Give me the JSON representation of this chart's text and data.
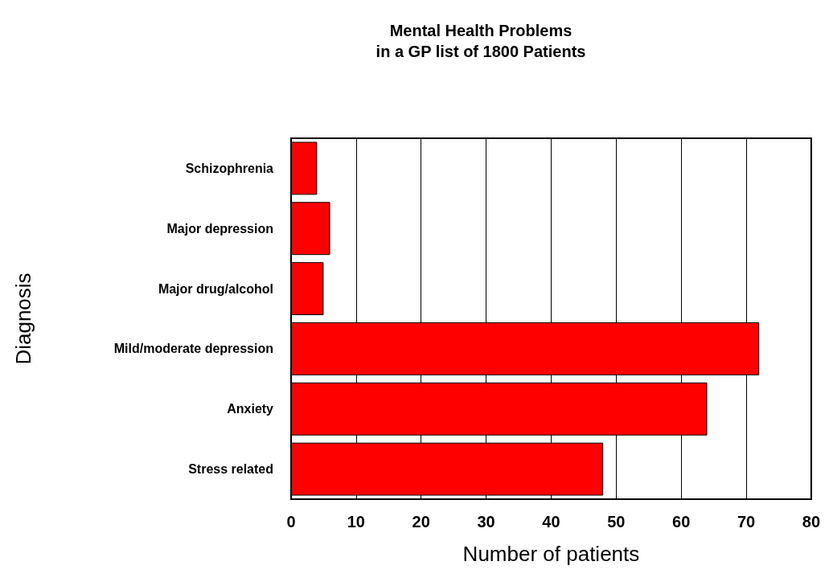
{
  "chart_data": {
    "type": "bar",
    "orientation": "horizontal",
    "title": "Mental Health Problems\nin a GP list of 1800 Patients",
    "xlabel": "Number of patients",
    "ylabel": "Diagnosis",
    "categories": [
      "Schizophrenia",
      "Major depression",
      "Major drug/alcohol",
      "Mild/moderate depression",
      "Anxiety",
      "Stress related"
    ],
    "values": [
      4,
      6,
      5,
      72,
      64,
      48
    ],
    "color": "#ff0000",
    "xlim": [
      0,
      80
    ],
    "xticks": [
      0,
      10,
      20,
      30,
      40,
      50,
      60,
      70,
      80
    ],
    "grid": "x"
  }
}
